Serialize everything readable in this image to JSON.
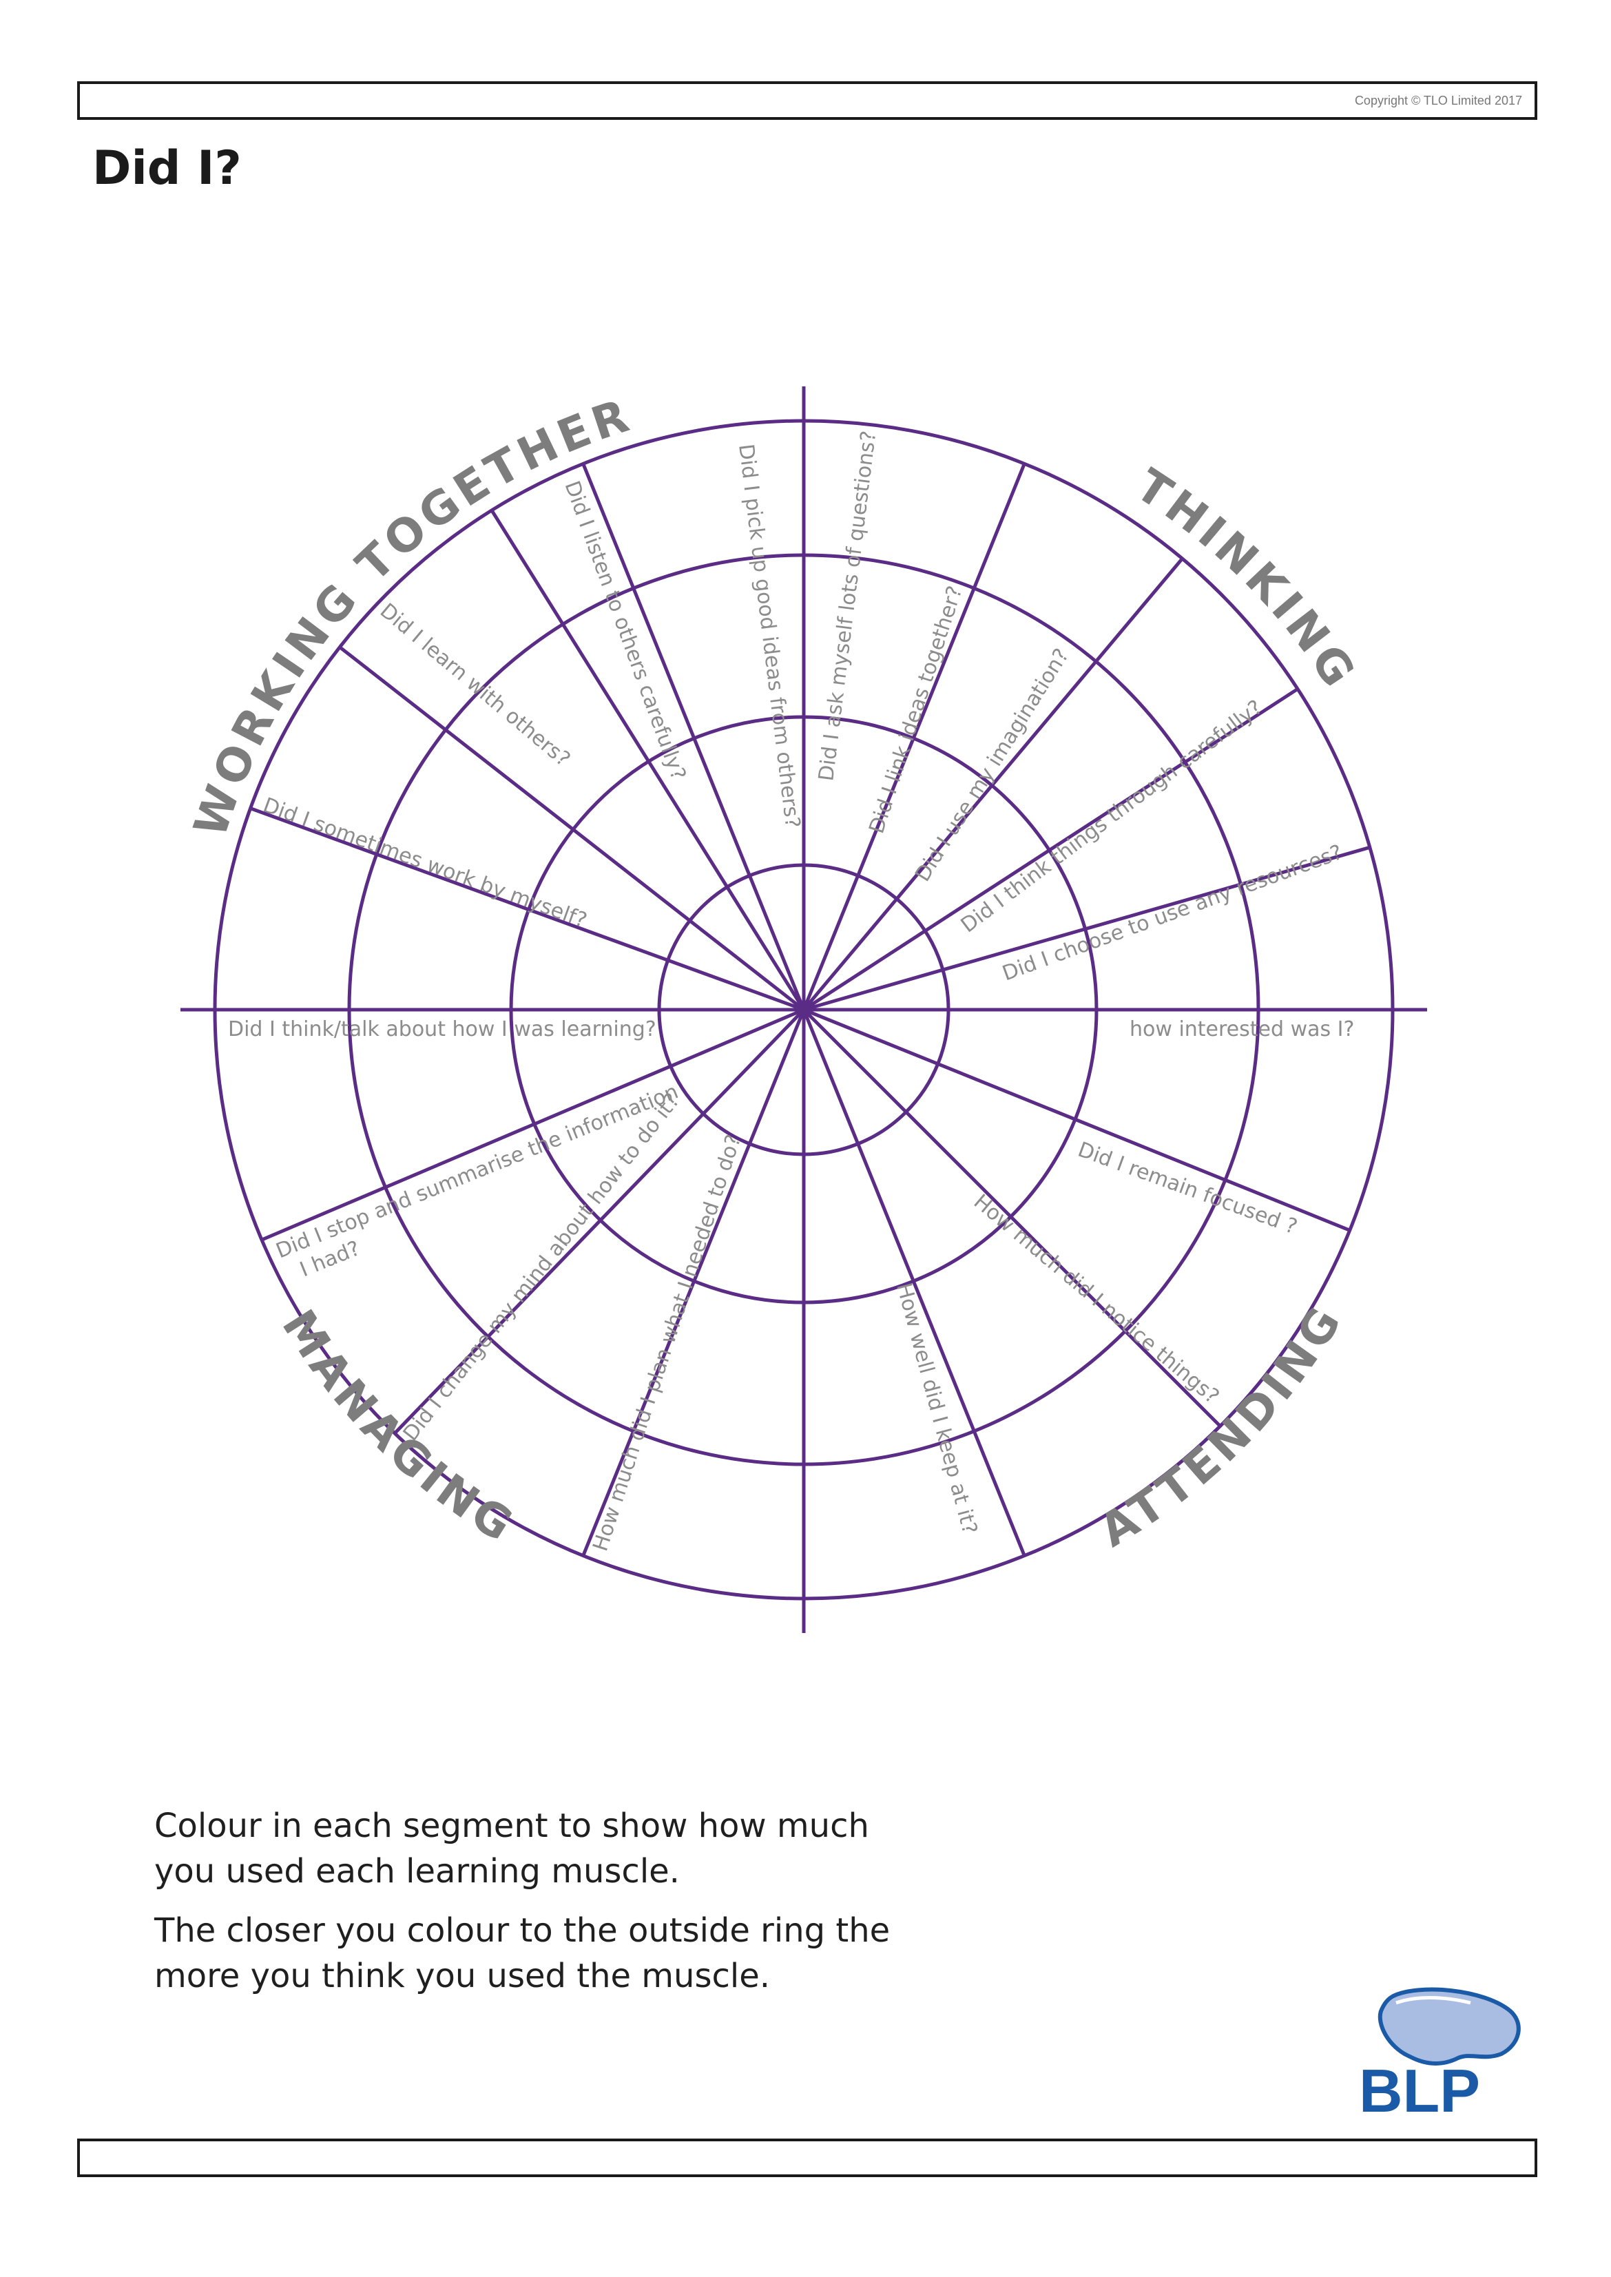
{
  "header": {
    "copyright": "Copyright © TLO Limited 2017"
  },
  "page": {
    "title": "Did I?"
  },
  "wheel": {
    "line_color": "#5b2c86",
    "question_color": "#8c8c8c",
    "category_color": "#7d7d7d",
    "categories": [
      {
        "key": "thinking",
        "label": "THINKING"
      },
      {
        "key": "working-together",
        "label": "WORKING TOGETHER"
      },
      {
        "key": "managing",
        "label": "MANAGING"
      },
      {
        "key": "attending",
        "label": "ATTENDING"
      }
    ],
    "questions": {
      "q1": "Did I pick up good  ideas from others?",
      "q2": "Did I ask myself  lots of questions?",
      "q3": "Did I listen to others carefully?",
      "q4": "Did I link ideas together?",
      "q5": "Did I learn with others?",
      "q6": "Did I use my imagination?",
      "q7": "Did I think things through carefully?",
      "q8": "Did I sometimes work by myself?",
      "q9": "Did I choose to use any resources?",
      "q10": "Did I think/talk about how I was learning?",
      "q11": "how interested was I?",
      "q12a": "Did I stop and summarise the information",
      "q12b": "I had?",
      "q13": "Did I remain focused ?",
      "q14": "How much did I notice things?",
      "q15": "Did I change my mind  about how to do it?",
      "q16": "How much did I plan what I needed to do?",
      "q17": "How well did I keep at it?"
    }
  },
  "instructions": {
    "line1": "Colour in each segment to show how much you used each learning muscle.",
    "line2": "The closer you colour to the outside ring the more you think you used the muscle."
  },
  "logo": {
    "text": "BLP",
    "text_color": "#1a5aa6",
    "cap_color": "#a9bde3"
  }
}
